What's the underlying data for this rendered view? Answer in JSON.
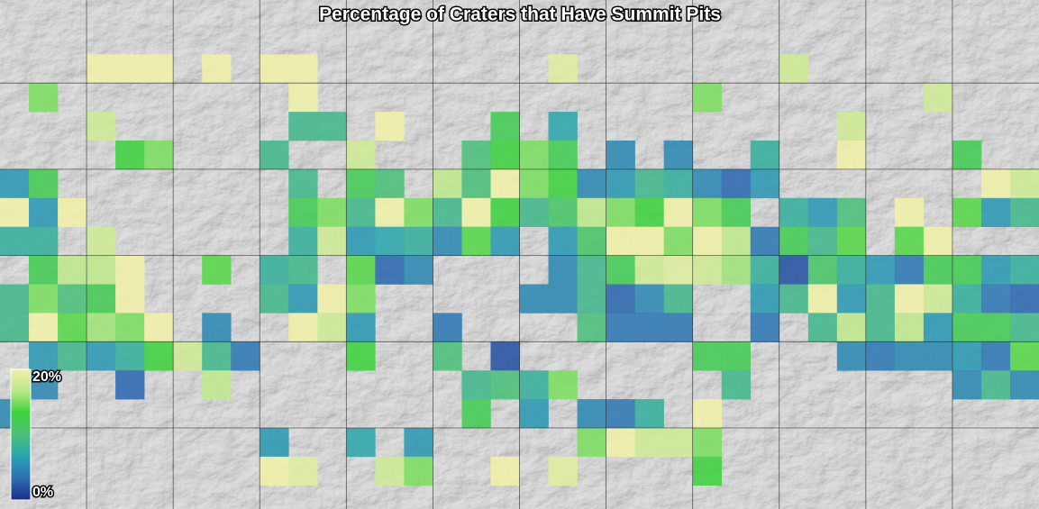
{
  "title": "Percentage of Craters that Have Summit Pits",
  "map": {
    "cells": [
      [
        null,
        null,
        null,
        null,
        null,
        null,
        null,
        null,
        null,
        null,
        null,
        null,
        null,
        null,
        null,
        null,
        null,
        null,
        null,
        null,
        null,
        null,
        null,
        null,
        null,
        null,
        null,
        null,
        null,
        null,
        null,
        null,
        null,
        null,
        null,
        null
      ],
      [
        null,
        null,
        null,
        null,
        null,
        null,
        null,
        null,
        null,
        null,
        null,
        null,
        null,
        null,
        null,
        null,
        null,
        null,
        null,
        null,
        null,
        null,
        null,
        null,
        null,
        null,
        null,
        null,
        null,
        null,
        null,
        null,
        null,
        null,
        null,
        null
      ],
      [
        null,
        null,
        null,
        20,
        20,
        20,
        null,
        20,
        null,
        20,
        20,
        null,
        null,
        null,
        null,
        null,
        null,
        null,
        null,
        19,
        null,
        null,
        null,
        null,
        null,
        null,
        null,
        18,
        null,
        null,
        null,
        null,
        null,
        null,
        null,
        null
      ],
      [
        null,
        15,
        null,
        null,
        null,
        null,
        null,
        null,
        null,
        null,
        20,
        null,
        null,
        null,
        null,
        null,
        null,
        null,
        null,
        null,
        null,
        null,
        null,
        null,
        15,
        null,
        null,
        null,
        null,
        null,
        null,
        null,
        18,
        null,
        null,
        null
      ],
      [
        null,
        null,
        null,
        18,
        null,
        null,
        null,
        null,
        null,
        null,
        9,
        9,
        null,
        20,
        null,
        null,
        null,
        12,
        null,
        7,
        null,
        null,
        null,
        null,
        null,
        null,
        null,
        null,
        null,
        18,
        null,
        null,
        null,
        null,
        null,
        null
      ],
      [
        null,
        null,
        null,
        null,
        13,
        15,
        null,
        null,
        null,
        9,
        null,
        null,
        18,
        null,
        null,
        null,
        10,
        13,
        15,
        12,
        null,
        5,
        null,
        5,
        null,
        null,
        8,
        null,
        null,
        20,
        null,
        null,
        null,
        12,
        null,
        null
      ],
      [
        6,
        12,
        null,
        null,
        null,
        null,
        null,
        null,
        null,
        null,
        9,
        null,
        12,
        10,
        null,
        17,
        10,
        20,
        15,
        13,
        5,
        6,
        9,
        8,
        5,
        3,
        6,
        null,
        null,
        null,
        null,
        null,
        null,
        null,
        20,
        18
      ],
      [
        20,
        6,
        20,
        null,
        null,
        null,
        null,
        null,
        null,
        null,
        12,
        15,
        9,
        20,
        15,
        9,
        20,
        13,
        9,
        11,
        17,
        15,
        13,
        20,
        15,
        12,
        null,
        8,
        6,
        10,
        null,
        20,
        null,
        14,
        6,
        9
      ],
      [
        8,
        8,
        null,
        18,
        null,
        null,
        null,
        null,
        null,
        null,
        8,
        18,
        6,
        7,
        8,
        5,
        14,
        6,
        null,
        6,
        11,
        20,
        20,
        15,
        20,
        17,
        4,
        12,
        9,
        14,
        null,
        14,
        20,
        null,
        null,
        null
      ],
      [
        null,
        12,
        17,
        17,
        20,
        null,
        null,
        14,
        null,
        8,
        9,
        null,
        14,
        3,
        5,
        null,
        null,
        null,
        null,
        5,
        9,
        12,
        18,
        19,
        18,
        16,
        8,
        2,
        11,
        8,
        6,
        4,
        12,
        12,
        6,
        8
      ],
      [
        9,
        15,
        10,
        12,
        20,
        null,
        null,
        null,
        null,
        9,
        6,
        20,
        15,
        null,
        null,
        null,
        null,
        null,
        5,
        5,
        9,
        3,
        5,
        9,
        null,
        null,
        6,
        9,
        20,
        6,
        9,
        20,
        18,
        8,
        4,
        3
      ],
      [
        9,
        20,
        14,
        16,
        15,
        20,
        null,
        5,
        null,
        null,
        20,
        18,
        6,
        null,
        null,
        4,
        null,
        null,
        null,
        null,
        10,
        4,
        4,
        4,
        null,
        null,
        4,
        null,
        9,
        17,
        9,
        17,
        6,
        12,
        12,
        9
      ],
      [
        null,
        6,
        9,
        6,
        8,
        13,
        18,
        9,
        4,
        null,
        null,
        null,
        13,
        null,
        null,
        10,
        null,
        2,
        null,
        null,
        null,
        null,
        null,
        null,
        12,
        12,
        null,
        null,
        null,
        5,
        4,
        5,
        5,
        6,
        4,
        14
      ],
      [
        null,
        5,
        null,
        null,
        3,
        null,
        null,
        17,
        null,
        null,
        null,
        null,
        null,
        null,
        null,
        null,
        9,
        10,
        8,
        15,
        null,
        null,
        null,
        null,
        null,
        9,
        null,
        null,
        null,
        null,
        null,
        null,
        null,
        5,
        9,
        5
      ],
      [
        5,
        null,
        null,
        null,
        null,
        null,
        null,
        null,
        null,
        null,
        null,
        null,
        null,
        null,
        null,
        null,
        12,
        null,
        6,
        null,
        5,
        4,
        8,
        null,
        20,
        null,
        null,
        null,
        null,
        null,
        null,
        null,
        null,
        null,
        null,
        null
      ],
      [
        null,
        null,
        null,
        null,
        null,
        null,
        null,
        null,
        null,
        6,
        null,
        null,
        7,
        null,
        6,
        null,
        null,
        null,
        null,
        null,
        15,
        20,
        18,
        18,
        15,
        null,
        null,
        null,
        null,
        null,
        null,
        null,
        null,
        null,
        null,
        null
      ],
      [
        null,
        null,
        null,
        null,
        null,
        null,
        null,
        null,
        null,
        20,
        19,
        null,
        null,
        18,
        15,
        null,
        null,
        20,
        null,
        19,
        null,
        null,
        null,
        null,
        13,
        null,
        null,
        null,
        null,
        null,
        null,
        null,
        null,
        null,
        null,
        null
      ],
      [
        null,
        null,
        null,
        null,
        null,
        null,
        null,
        null,
        null,
        null,
        null,
        null,
        null,
        null,
        null,
        null,
        null,
        null,
        null,
        null,
        null,
        null,
        null,
        null,
        null,
        null,
        null,
        null,
        null,
        null,
        null,
        null,
        null,
        null,
        null,
        null
      ]
    ]
  },
  "colorbar": {
    "range": [
      0,
      20
    ],
    "colors": [
      "#1b2a8a",
      "#2f6fb3",
      "#2aa3b3",
      "#4cbf7a",
      "#3fd33a",
      "#b8e88a",
      "#f0f0a8"
    ],
    "ticks": [
      {
        "value": 20,
        "label": "20%"
      },
      {
        "value": 0,
        "label": "0%"
      }
    ]
  }
}
